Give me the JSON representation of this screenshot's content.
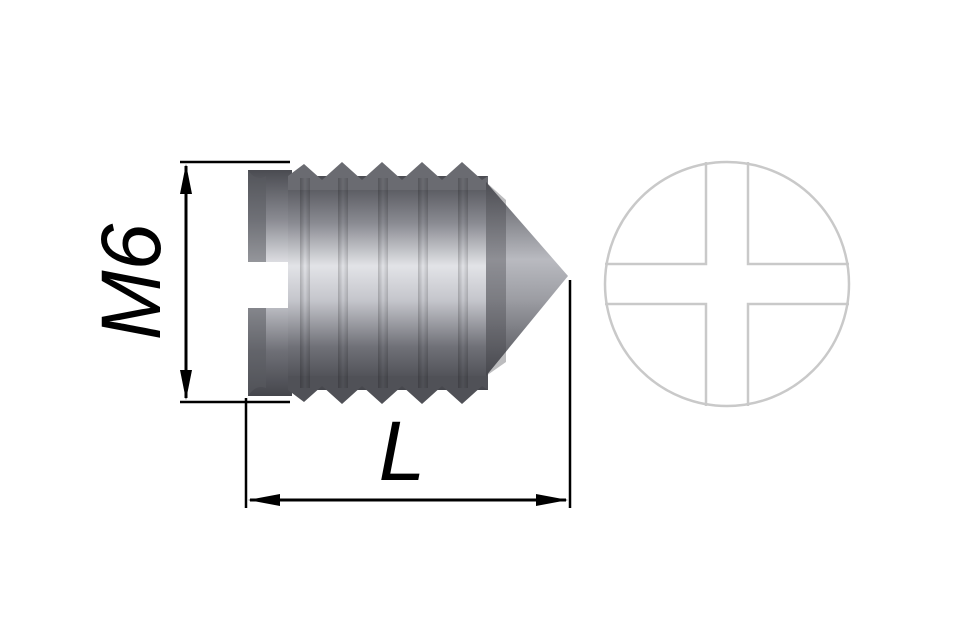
{
  "dimensions": {
    "thread_size_label": "M6",
    "length_label": "L"
  },
  "colors": {
    "background": "#ffffff",
    "dimension_lines": "#000000",
    "screw_body_dark": "#55565c",
    "screw_body_light": "#d9dade",
    "end_view_outline": "#c9c9c9"
  },
  "icons": {
    "side_view": "set-screw-cone-point-slotted-icon",
    "end_view": "cross-slot-head-icon"
  }
}
